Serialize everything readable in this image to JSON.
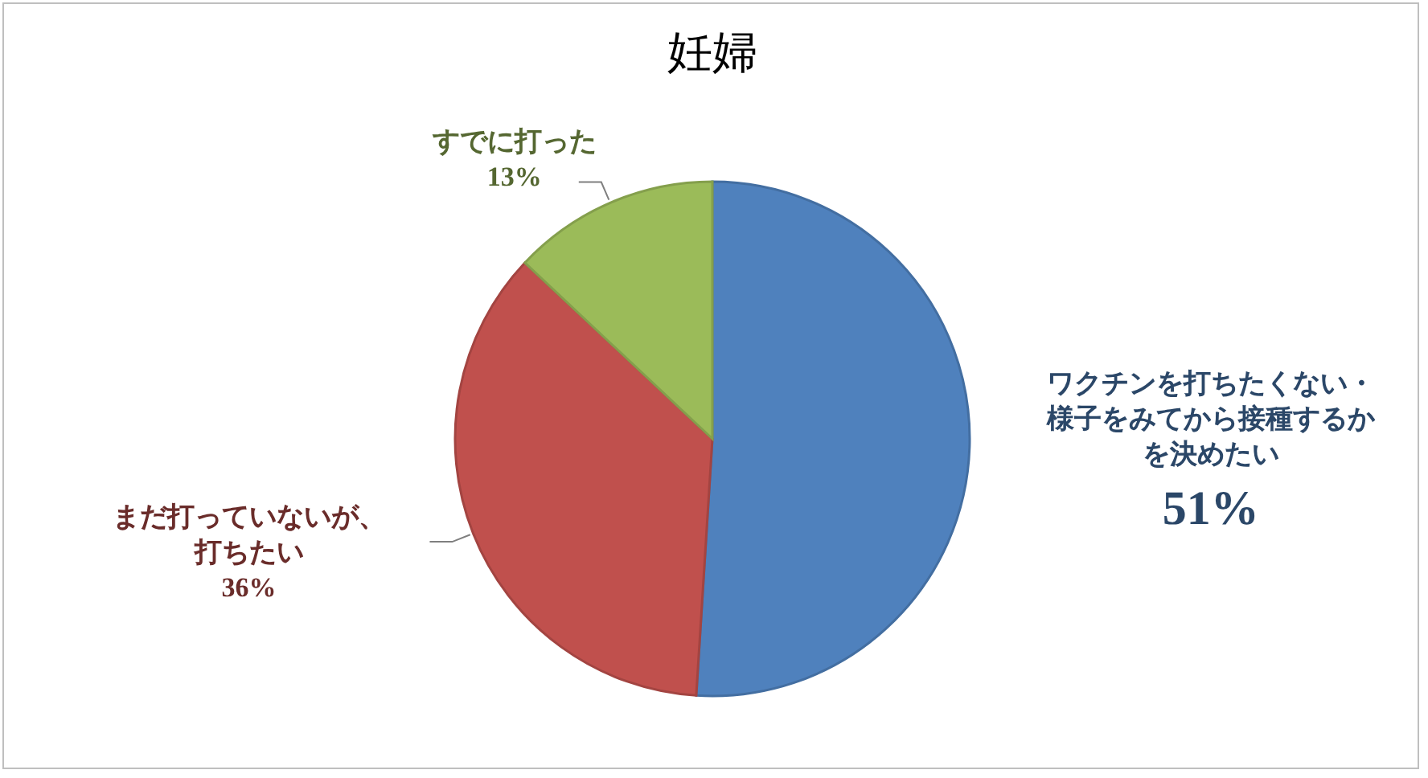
{
  "chart_data": {
    "type": "pie",
    "title": "妊婦",
    "categories": [
      "ワクチンを打ちたくない・様子をみてから接種するかを決めたい",
      "まだ打っていないが、打ちたい",
      "すでに打った"
    ],
    "values": [
      51,
      36,
      13
    ],
    "value_labels": [
      "51%",
      "36%",
      "13%"
    ],
    "colors": [
      "#4f81bd",
      "#c0504d",
      "#9bbb59"
    ],
    "legend": false
  }
}
